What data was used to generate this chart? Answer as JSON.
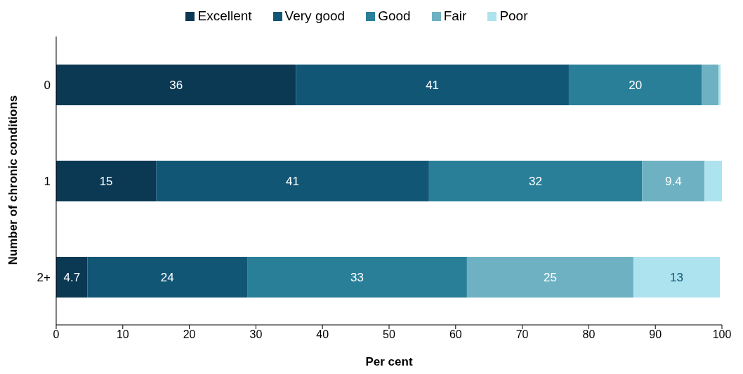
{
  "chart_data": {
    "type": "bar",
    "orientation": "horizontal",
    "stacked": true,
    "xlabel": "Per cent",
    "ylabel": "Number of chronic conditions",
    "categories": [
      "0",
      "1",
      "2+"
    ],
    "series": [
      {
        "name": "Excellent",
        "color": "#0b3954",
        "values": [
          36,
          15,
          4.7
        ],
        "value_labels": [
          "36",
          "15",
          "4.7"
        ]
      },
      {
        "name": "Very good",
        "color": "#125676",
        "values": [
          41,
          41,
          24
        ],
        "value_labels": [
          "41",
          "41",
          "24"
        ]
      },
      {
        "name": "Good",
        "color": "#2a7f98",
        "values": [
          20,
          32,
          33
        ],
        "value_labels": [
          "20",
          "32",
          "33"
        ]
      },
      {
        "name": "Fair",
        "color": "#6eb1c2",
        "values": [
          2.5,
          9.4,
          25
        ],
        "value_labels": [
          null,
          "9.4",
          "25"
        ]
      },
      {
        "name": "Poor",
        "color": "#ade3ee",
        "values": [
          0.3,
          2.6,
          13
        ],
        "value_labels": [
          null,
          null,
          "13"
        ]
      }
    ],
    "xlim": [
      0,
      100
    ],
    "xticks": [
      0,
      10,
      20,
      30,
      40,
      50,
      60,
      70,
      80,
      90,
      100
    ],
    "grid": false,
    "legend": "top"
  }
}
